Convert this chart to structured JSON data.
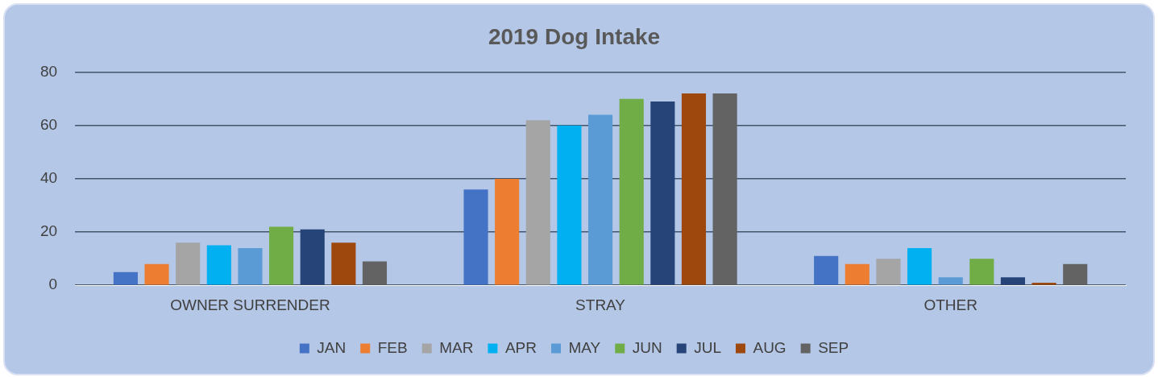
{
  "chart_data": {
    "type": "bar",
    "title": "2019 Dog Intake",
    "categories": [
      "OWNER SURRENDER",
      "STRAY",
      "OTHER"
    ],
    "series": [
      {
        "name": "JAN",
        "color": "#4472c4",
        "values": [
          5,
          36,
          11
        ]
      },
      {
        "name": "FEB",
        "color": "#ed7d31",
        "values": [
          8,
          40,
          8
        ]
      },
      {
        "name": "MAR",
        "color": "#a5a5a5",
        "values": [
          16,
          62,
          10
        ]
      },
      {
        "name": "APR",
        "color": "#00b0f0",
        "values": [
          15,
          60,
          14
        ]
      },
      {
        "name": "MAY",
        "color": "#5b9bd5",
        "values": [
          14,
          64,
          3
        ]
      },
      {
        "name": "JUN",
        "color": "#70ad47",
        "values": [
          22,
          70,
          10
        ]
      },
      {
        "name": "JUL",
        "color": "#264478",
        "values": [
          21,
          69,
          3
        ]
      },
      {
        "name": "AUG",
        "color": "#9e480e",
        "values": [
          16,
          72,
          1
        ]
      },
      {
        "name": "SEP",
        "color": "#636363",
        "values": [
          9,
          72,
          8
        ]
      }
    ],
    "ylim": [
      0,
      80
    ],
    "yticks": [
      0,
      20,
      40,
      60,
      80
    ],
    "grid": "y",
    "legend": "bottom"
  }
}
